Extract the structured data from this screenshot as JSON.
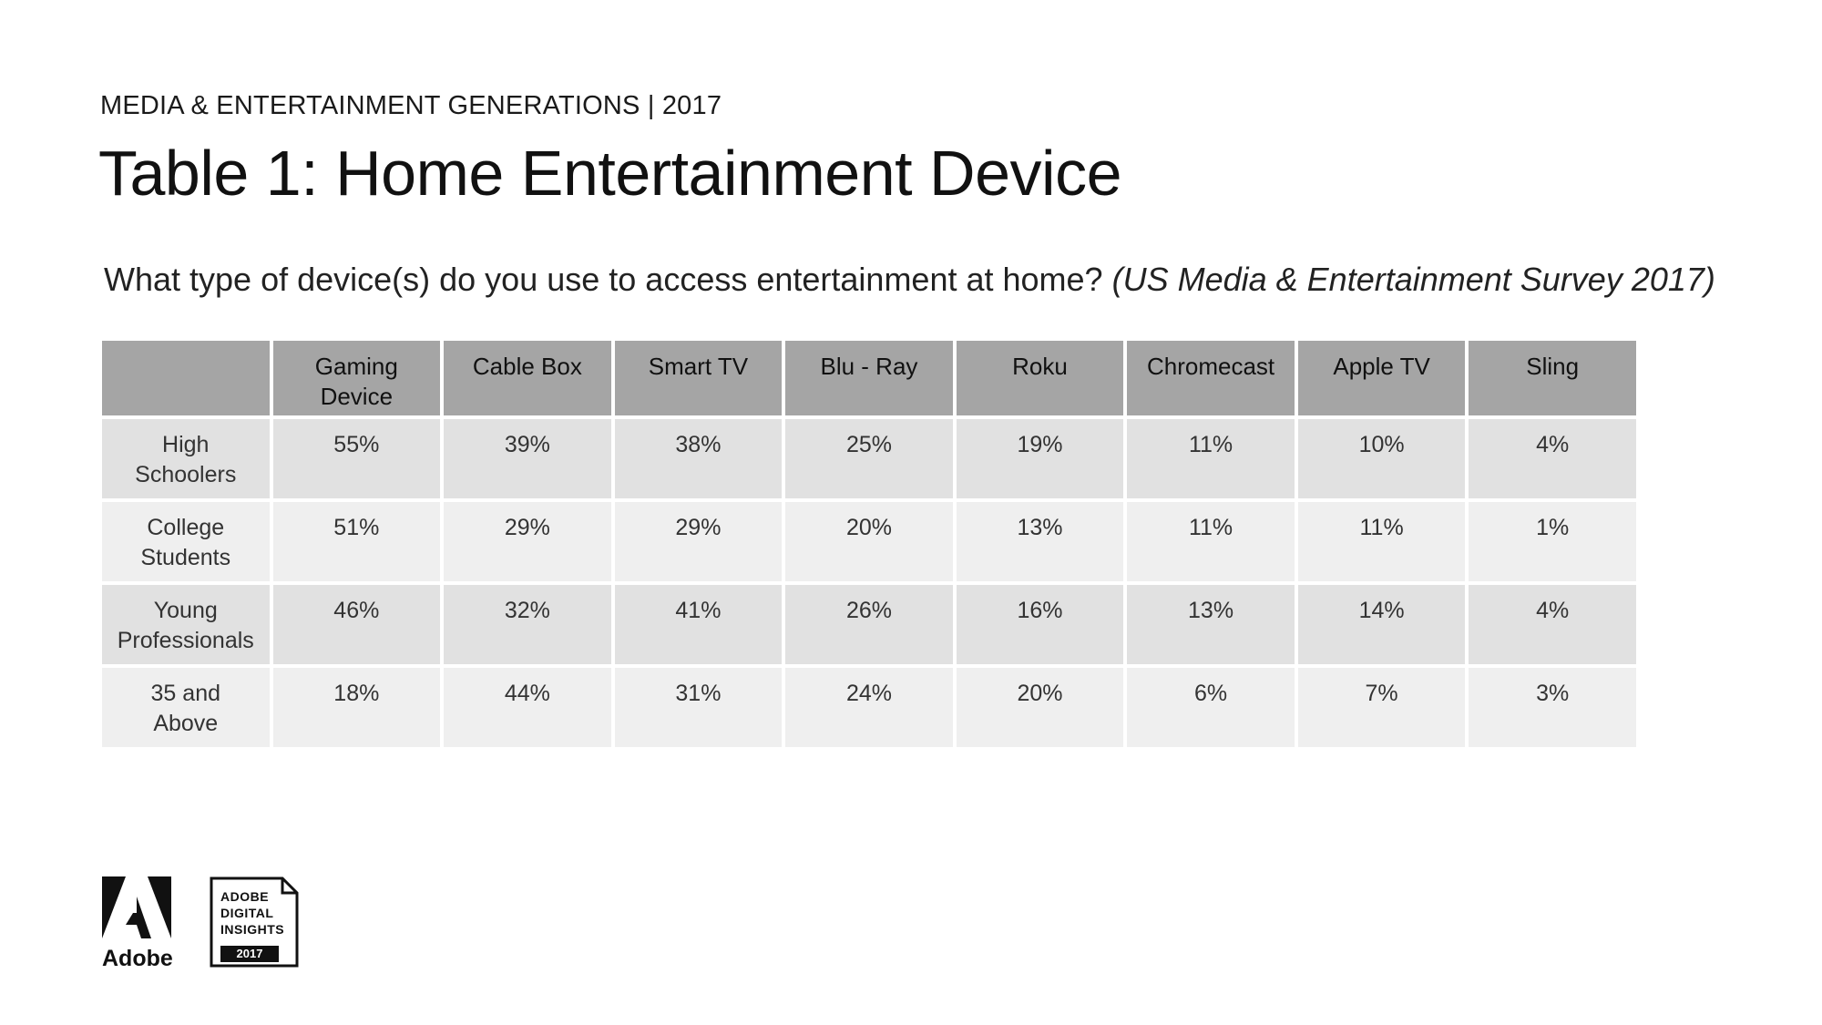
{
  "header": {
    "eyebrow": "MEDIA & ENTERTAINMENT GENERATIONS | 2017",
    "title": "Table 1: Home Entertainment Device",
    "question": "What type of device(s) do you use to access entertainment at home?",
    "source": "(US Media & Entertainment Survey 2017)"
  },
  "chart_data": {
    "type": "table",
    "columns": [
      "",
      "Gaming Device",
      "Cable Box",
      "Smart TV",
      "Blu - Ray",
      "Roku",
      "Chromecast",
      "Apple TV",
      "Sling"
    ],
    "rows": [
      {
        "label": "High Schoolers",
        "values": [
          "55%",
          "39%",
          "38%",
          "25%",
          "19%",
          "11%",
          "10%",
          "4%"
        ]
      },
      {
        "label": "College Students",
        "values": [
          "51%",
          "29%",
          "29%",
          "20%",
          "13%",
          "11%",
          "11%",
          "1%"
        ]
      },
      {
        "label": "Young Professionals",
        "values": [
          "46%",
          "32%",
          "41%",
          "26%",
          "16%",
          "13%",
          "14%",
          "4%"
        ]
      },
      {
        "label": "35 and Above",
        "values": [
          "18%",
          "44%",
          "31%",
          "24%",
          "20%",
          "6%",
          "7%",
          "3%"
        ]
      }
    ]
  },
  "footer": {
    "adobe_word": "Adobe",
    "badge_lines": [
      "ADOBE",
      "DIGITAL",
      "INSIGHTS"
    ],
    "badge_year": "2017"
  },
  "colors": {
    "header_fill": "#a5a5a5",
    "row_dark": "#e1e1e1",
    "row_light": "#efefef"
  }
}
